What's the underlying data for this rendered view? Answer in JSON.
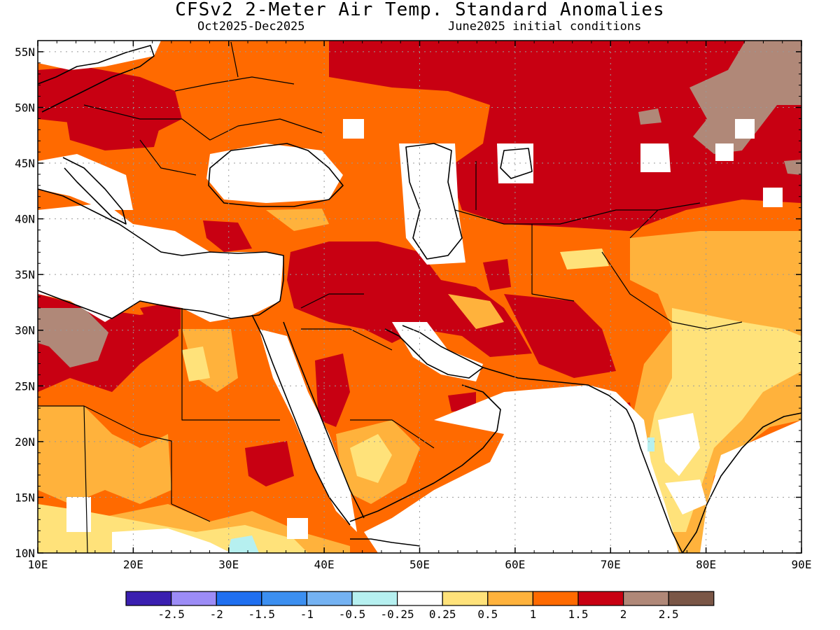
{
  "header": {
    "title": "CFSv2 2-Meter Air Temp. Standard Anomalies",
    "period": "Oct2025-Dec2025",
    "init": "June2025 initial conditions"
  },
  "axes": {
    "lat_labels": [
      "55N",
      "50N",
      "45N",
      "40N",
      "35N",
      "30N",
      "25N",
      "20N",
      "15N",
      "10N"
    ],
    "lon_labels": [
      "10E",
      "20E",
      "30E",
      "40E",
      "50E",
      "60E",
      "70E",
      "80E",
      "90E"
    ]
  },
  "legend": {
    "colors": [
      "#3a1fb0",
      "#9c8cf6",
      "#1f6ff0",
      "#3c8ff0",
      "#74b2f2",
      "#b6f0f0",
      "#ffffff",
      "#ffe27a",
      "#ffb23c",
      "#ff6a00",
      "#c80012",
      "#b08878",
      "#7a5646"
    ],
    "labels": [
      "-2.5",
      "-2",
      "-1.5",
      "-1",
      "-0.5",
      "-0.25",
      "0.25",
      "0.5",
      "1",
      "1.5",
      "2",
      "2.5"
    ]
  },
  "palette": {
    "dark_red": "#c80012",
    "orange": "#ff6a00",
    "light_orange": "#ffb23c",
    "yellow": "#ffe27a",
    "brown": "#b08878",
    "light_blue": "#b6f0f0",
    "white": "#ffffff"
  }
}
